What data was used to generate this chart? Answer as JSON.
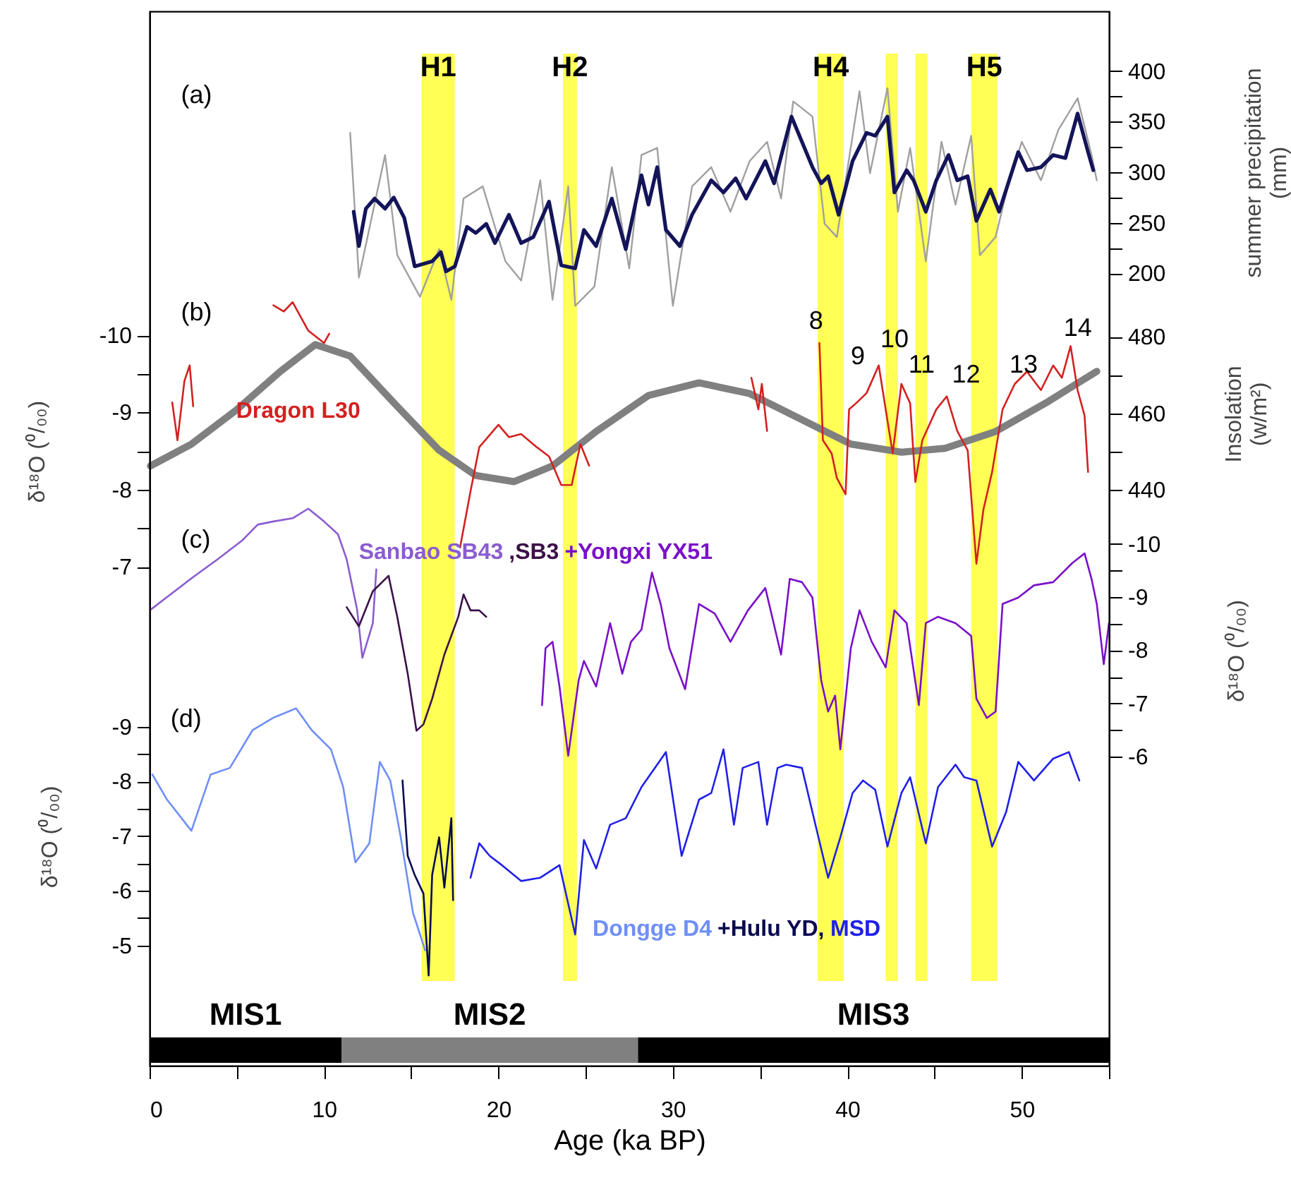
{
  "chart_data": [
    {
      "type": "line",
      "xlim": [
        0,
        55
      ],
      "tick_labels": "y",
      "ylabel": "δ¹⁸O (⁰/₀₀)",
      "ylim": [
        -1.54,
        -14.2
      ],
      "yticks": [
        -10,
        {
          "value": -9.5,
          "label": null
        },
        -9,
        {
          "value": -8.5,
          "label": null
        },
        -8,
        {
          "value": -7.5,
          "label": null
        },
        -7
      ],
      "y2label": "summer precipitation (mm)",
      "y2lim": [
        -506,
        459
      ],
      "y2ticks": [
        400,
        {
          "value": 375,
          "label": null
        },
        350,
        {
          "value": 325,
          "label": null
        },
        300,
        {
          "value": 275,
          "label": null
        },
        250,
        {
          "value": 225,
          "label": null
        },
        200
      ],
      "y3label": "Insolation (w/m²)",
      "y3lim": [
        310,
        565
      ],
      "y3ticks": [
        480,
        {
          "value": 470,
          "label": null
        },
        460,
        {
          "value": 450,
          "label": null
        },
        440
      ],
      "series": [
        {
          "axis": "y2",
          "color": "#a0a0a0",
          "x": [
            11.5,
            12.0,
            13.5,
            14.2,
            15.5,
            16.6,
            17.3,
            18.0,
            19.1,
            20.4,
            21.3,
            22.4,
            23.1,
            24.0,
            24.4,
            25.5,
            26.5,
            27.5,
            28.2,
            29.1,
            30.0,
            31.1,
            32.2,
            33.3,
            34.4,
            35.4,
            36.2,
            36.9,
            38.0,
            38.7,
            39.4,
            40.7,
            41.3,
            42.3,
            42.9,
            43.6,
            44.5,
            45.4,
            46.2,
            47.1,
            47.6,
            48.5,
            49.2,
            50.0,
            51.1,
            52.1,
            53.2,
            54.0,
            54.3
          ],
          "values": [
            339,
            196,
            317,
            218,
            177,
            224,
            174,
            274,
            286,
            212,
            193,
            292,
            174,
            286,
            168,
            187,
            305,
            205,
            317,
            324,
            168,
            286,
            305,
            261,
            311,
            330,
            274,
            370,
            355,
            249,
            236,
            380,
            299,
            383,
            261,
            324,
            212,
            330,
            268,
            336,
            218,
            236,
            286,
            330,
            292,
            342,
            373,
            317,
            292
          ]
        },
        {
          "axis": "y2",
          "color": "#14145a",
          "x": [
            11.7,
            12.0,
            12.4,
            12.9,
            13.5,
            14.0,
            14.6,
            15.2,
            16.2,
            16.7,
            17.0,
            17.5,
            18.2,
            18.7,
            19.3,
            19.8,
            20.6,
            21.3,
            22.0,
            22.9,
            23.6,
            24.4,
            24.9,
            25.6,
            26.5,
            27.3,
            28.2,
            28.6,
            29.1,
            29.6,
            30.4,
            31.1,
            32.2,
            32.9,
            33.6,
            34.2,
            35.3,
            35.8,
            36.8,
            37.4,
            38.0,
            38.5,
            38.9,
            39.5,
            40.3,
            41.1,
            41.6,
            42.3,
            42.7,
            43.4,
            43.8,
            44.5,
            45.1,
            45.8,
            46.3,
            46.9,
            47.4,
            48.2,
            48.7,
            49.8,
            50.3,
            51.1,
            51.8,
            52.5,
            53.2,
            53.8,
            54.1
          ],
          "values": [
            261,
            227,
            264,
            274,
            264,
            275,
            255,
            207,
            212,
            221,
            202,
            207,
            246,
            240,
            249,
            230,
            258,
            230,
            236,
            271,
            208,
            205,
            243,
            227,
            274,
            224,
            297,
            268,
            305,
            243,
            227,
            258,
            292,
            280,
            294,
            274,
            311,
            289,
            355,
            330,
            305,
            289,
            296,
            258,
            311,
            339,
            336,
            355,
            280,
            302,
            292,
            261,
            292,
            317,
            292,
            296,
            252,
            283,
            261,
            320,
            302,
            305,
            317,
            314,
            358,
            320,
            302
          ]
        },
        {
          "axis": "y3",
          "color": "#808080",
          "x": [
            0.05,
            2.4,
            5.0,
            7.5,
            9.5,
            11.5,
            14.0,
            16.6,
            18.7,
            20.9,
            23.1,
            25.6,
            28.6,
            31.5,
            34.4,
            37.3,
            40.2,
            43.1,
            45.6,
            48.5,
            51.4,
            54.3
          ],
          "values": [
            446.3,
            452,
            461,
            471,
            478,
            475,
            462.8,
            450.4,
            443.8,
            442.2,
            446.3,
            455.3,
            464.7,
            468,
            465.2,
            458.6,
            452,
            449.9,
            450.9,
            455.3,
            462.8,
            471
          ]
        },
        {
          "name": "Dragon L30",
          "color": "#d42020",
          "x": [
            1.3,
            1.6,
            2.0,
            2.3,
            2.5,
            4.8,
            7.1,
            7.7,
            8.2,
            9.1,
            10.0,
            10.3,
            14.0,
            17.8,
            18.4,
            18.9,
            20.0,
            20.6,
            21.3,
            22.2,
            22.9,
            23.6,
            24.2,
            24.7,
            25.2,
            30.0,
            34.5,
            34.9,
            35.1,
            35.4,
            37.0,
            38.4,
            38.6,
            39.1,
            39.4,
            39.9,
            40.1,
            40.5,
            41.1,
            41.8,
            42.2,
            42.6,
            43.1,
            43.6,
            43.9,
            44.3,
            45.1,
            45.7,
            46.3,
            46.9,
            47.4,
            47.8,
            48.3,
            48.9,
            49.6,
            50.3,
            51.1,
            51.8,
            52.3,
            52.8,
            53.2,
            53.6,
            53.8
          ],
          "values": [
            -9.13,
            -8.64,
            -9.41,
            -9.61,
            -9.08,
            null,
            -10.39,
            -10.31,
            -10.43,
            -10.06,
            -9.9,
            -10.02,
            null,
            -7.25,
            -7.98,
            -8.55,
            -8.84,
            -8.68,
            -8.72,
            -8.55,
            -8.43,
            -8.06,
            -8.06,
            -8.59,
            -8.31,
            null,
            -9.45,
            -9.04,
            -9.37,
            -8.76,
            null,
            -9.9,
            -8.64,
            -8.47,
            -8.15,
            -7.94,
            -9.04,
            -9.12,
            -9.25,
            -9.61,
            -9.04,
            -8.47,
            -9.37,
            -9.12,
            -8.1,
            -8.64,
            -9.04,
            -9.21,
            -8.76,
            -8.51,
            -7.04,
            -7.74,
            -8.23,
            -9.04,
            -9.37,
            -9.53,
            -9.29,
            -9.61,
            -9.45,
            -9.86,
            -9.29,
            -8.96,
            -8.23
          ]
        }
      ],
      "bands": [
        {
          "axis": "x",
          "from": 15.6,
          "to": 17.5,
          "label": "H1",
          "color": "#ffff55"
        },
        {
          "axis": "x",
          "from": 23.7,
          "to": 24.5,
          "label": "H2",
          "color": "#ffff55"
        },
        {
          "axis": "x",
          "from": 38.3,
          "to": 39.8,
          "label": "H4",
          "color": "#ffff55"
        },
        {
          "axis": "x",
          "from": 42.2,
          "to": 42.9,
          "color": "#ffff55"
        },
        {
          "axis": "x",
          "from": 43.9,
          "to": 44.6,
          "color": "#ffff55"
        },
        {
          "axis": "x",
          "from": 47.1,
          "to": 48.6,
          "label": "H5",
          "color": "#ffff55"
        }
      ],
      "annotations": [
        "(a)",
        "(b)",
        "8",
        "9",
        "10",
        "11",
        "12",
        "13",
        "14"
      ]
    },
    {
      "type": "line",
      "xlim": [
        0,
        55
      ],
      "tick_labels": "y",
      "ylabel": "δ¹⁸O (⁰/₀₀)",
      "ylim": [
        -2.8,
        -22.1
      ],
      "yticks": [
        -9,
        {
          "value": -8.5,
          "label": null
        },
        -8,
        {
          "value": -7.5,
          "label": null
        },
        -7,
        {
          "value": -6.5,
          "label": null
        },
        -6,
        {
          "value": -5.5,
          "label": null
        },
        -5
      ],
      "y2label": "δ¹⁸O (⁰/₀₀)",
      "y2lim": [
        -0.2,
        -20
      ],
      "y2ticks": [
        -10,
        {
          "value": -9.5,
          "label": null
        },
        -9,
        {
          "value": -8.5,
          "label": null
        },
        -8,
        {
          "value": -7.5,
          "label": null
        },
        -7,
        {
          "value": -6.5,
          "label": null
        },
        -6
      ],
      "series": [
        {
          "name": "Sanbao SB43",
          "axis": "y2",
          "color": "#8a5cd0",
          "x": [
            0.05,
            1.0,
            2.4,
            3.9,
            5.3,
            6.2,
            7.1,
            8.2,
            9.1,
            10.0,
            10.8,
            11.3,
            11.9,
            12.2,
            12.8,
            13.0
          ],
          "values": [
            -8.76,
            -9.0,
            -9.35,
            -9.71,
            -10.06,
            -10.36,
            -10.42,
            -10.48,
            -10.66,
            -10.42,
            -10.18,
            -9.71,
            -8.76,
            -7.86,
            -8.51,
            -9.52
          ]
        },
        {
          "name": ",SB3",
          "axis": "y2",
          "color": "#3d1048",
          "x": [
            11.3,
            12.0,
            12.8,
            13.7,
            14.2,
            14.8,
            15.3,
            15.7,
            16.2,
            16.9,
            17.7,
            18.0,
            18.4,
            18.9,
            19.3
          ],
          "values": [
            -8.81,
            -8.45,
            -9.11,
            -9.4,
            -8.63,
            -7.56,
            -6.49,
            -6.61,
            -7.09,
            -7.92,
            -8.63,
            -9.05,
            -8.75,
            -8.75,
            -8.63
          ]
        },
        {
          "name": "+Yongxi YX51",
          "axis": "y2",
          "color": "#7a10c8",
          "x": [
            22.5,
            22.7,
            23.1,
            23.5,
            24.0,
            24.6,
            24.9,
            25.6,
            26.4,
            27.1,
            27.6,
            28.2,
            28.8,
            29.3,
            29.8,
            30.7,
            31.5,
            32.4,
            33.3,
            34.3,
            35.3,
            36.2,
            36.7,
            37.4,
            38.0,
            38.5,
            38.9,
            39.3,
            39.6,
            40.2,
            40.7,
            41.4,
            42.2,
            42.7,
            43.4,
            44.1,
            44.5,
            45.2,
            46.2,
            47.1,
            47.4,
            48.0,
            48.5,
            48.9,
            49.8,
            50.7,
            51.8,
            52.9,
            53.6,
            54.0,
            54.3,
            54.7,
            55.0
          ],
          "values": [
            -6.97,
            -8.04,
            -8.16,
            -7.32,
            -6.02,
            -7.44,
            -7.8,
            -7.32,
            -8.51,
            -7.56,
            -8.16,
            -8.39,
            -9.46,
            -8.87,
            -8.04,
            -7.27,
            -8.87,
            -8.69,
            -8.16,
            -8.75,
            -9.17,
            -7.92,
            -9.34,
            -9.28,
            -8.99,
            -7.44,
            -6.85,
            -7.15,
            -6.14,
            -8.04,
            -8.75,
            -8.16,
            -7.68,
            -8.75,
            -8.51,
            -6.97,
            -8.51,
            -8.63,
            -8.51,
            -8.27,
            -7.09,
            -6.73,
            -6.85,
            -8.87,
            -8.99,
            -9.22,
            -9.28,
            -9.64,
            -9.82,
            -9.34,
            -8.87,
            -7.74,
            -8.51
          ]
        },
        {
          "name": "Dongge D4",
          "color": "#6f8ff5",
          "x": [
            0.16,
            1.0,
            2.4,
            3.5,
            4.6,
            5.9,
            7.1,
            8.4,
            9.3,
            10.4,
            11.1,
            11.8,
            12.6,
            13.2,
            13.8,
            14.4,
            15.1,
            15.8
          ],
          "values": [
            -8.13,
            -7.67,
            -7.1,
            -8.13,
            -8.25,
            -8.94,
            -9.17,
            -9.34,
            -8.94,
            -8.59,
            -7.9,
            -6.52,
            -6.87,
            -8.36,
            -8.02,
            -6.98,
            -5.6,
            -4.91
          ]
        },
        {
          "name": "+Hulu YD,",
          "color": "#0a0a50",
          "x": [
            14.5,
            14.8,
            15.2,
            15.7,
            16.0,
            16.2,
            16.6,
            16.9,
            17.3,
            17.4
          ],
          "values": [
            -8.02,
            -6.64,
            -6.29,
            -5.95,
            -4.45,
            -6.29,
            -6.98,
            -6.06,
            -7.33,
            -5.83
          ]
        },
        {
          "name": "MSD",
          "color": "#2020e8",
          "x": [
            18.4,
            18.9,
            19.5,
            20.2,
            21.3,
            22.4,
            23.5,
            24.4,
            24.9,
            25.6,
            26.4,
            27.3,
            28.2,
            29.6,
            30.5,
            31.5,
            32.2,
            32.9,
            33.5,
            34.0,
            34.9,
            35.4,
            36.0,
            36.5,
            37.4,
            38.0,
            38.9,
            39.6,
            40.3,
            40.9,
            41.6,
            42.3,
            43.1,
            43.6,
            44.5,
            45.2,
            46.2,
            46.7,
            47.4,
            48.3,
            49.1,
            49.8,
            50.7,
            51.8,
            52.7,
            53.3
          ],
          "values": [
            -6.24,
            -6.87,
            -6.64,
            -6.47,
            -6.18,
            -6.24,
            -6.47,
            -5.2,
            -6.93,
            -6.41,
            -7.21,
            -7.33,
            -7.9,
            -8.54,
            -6.64,
            -7.67,
            -7.79,
            -8.59,
            -7.21,
            -8.25,
            -8.36,
            -7.21,
            -8.25,
            -8.31,
            -8.25,
            -7.44,
            -6.24,
            -6.98,
            -7.79,
            -8.02,
            -7.85,
            -6.81,
            -7.79,
            -8.08,
            -6.87,
            -7.9,
            -8.31,
            -8.08,
            -8.02,
            -6.81,
            -7.44,
            -8.36,
            -8.02,
            -8.42,
            -8.54,
            -8.02
          ]
        }
      ],
      "annotations": [
        "(c)",
        "(d)"
      ]
    },
    {
      "type": "bar",
      "orientation": "horizontal",
      "stacked": true,
      "xlabel": "Age (ka BP)",
      "xlim": [
        0,
        55
      ],
      "tick_labels": "x",
      "categories": [
        null
      ],
      "xticks": [
        0,
        {
          "value": 5,
          "label": null
        },
        10,
        {
          "value": 15,
          "label": null
        },
        20,
        {
          "value": 25,
          "label": null
        },
        30,
        {
          "value": 35,
          "label": null
        },
        40,
        {
          "value": 45,
          "label": null
        },
        50,
        {
          "value": 55,
          "label": null
        }
      ],
      "series": [
        {
          "name": "MIS1",
          "color": "#000000",
          "values": [
            11
          ]
        },
        {
          "name": "MIS2",
          "color": "#808080",
          "values": [
            17
          ]
        },
        {
          "name": "MIS3",
          "color": "#000000",
          "values": [
            27
          ]
        }
      ]
    }
  ]
}
